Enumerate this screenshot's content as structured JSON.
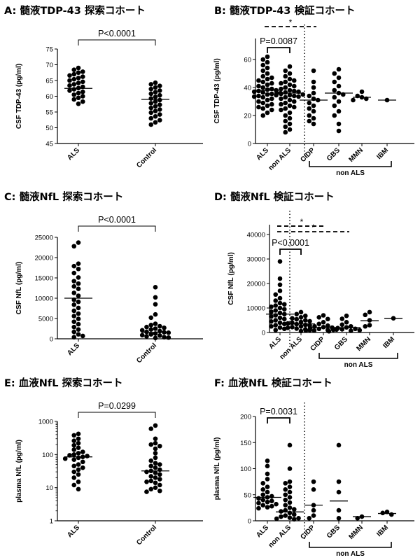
{
  "panels": {
    "A": {
      "title": "A: 髄液TDP-43 探索コホート"
    },
    "B": {
      "title": "B: 髄液TDP-43 検証コホート"
    },
    "C": {
      "title": "C: 髄液NfL 探索コホート"
    },
    "D": {
      "title": "D: 髄液NfL 検証コホート"
    },
    "E": {
      "title": "E: 血液NfL 探索コホート"
    },
    "F": {
      "title": "F: 血液NfL 検証コホート"
    }
  },
  "chart_data": [
    {
      "id": "A",
      "type": "scatter",
      "ylabel": "CSF TDP-43  (pg/ml)",
      "ylim": [
        45,
        75
      ],
      "yticks": [
        45,
        50,
        55,
        60,
        65,
        70,
        75
      ],
      "scale": "linear",
      "categories": [
        "ALS",
        "Control"
      ],
      "medians": [
        62.5,
        59
      ],
      "series": [
        {
          "values": [
            69,
            68.4,
            67.8,
            67.5,
            67,
            66.6,
            66.2,
            65.8,
            65.4,
            65,
            64.6,
            64.2,
            63.8,
            63.4,
            63,
            62.6,
            62.2,
            61.8,
            61.4,
            61,
            60.5,
            60,
            59.5,
            59,
            58.3,
            57.6
          ]
        },
        {
          "values": [
            64.3,
            63.8,
            63.3,
            62.8,
            62.3,
            61.8,
            61.3,
            60.8,
            60.3,
            59.8,
            59.3,
            58.8,
            58.3,
            57.8,
            57.3,
            56.8,
            56.3,
            55.8,
            55.3,
            54.8,
            54.2,
            53.6,
            53,
            52.4,
            51.7,
            51
          ]
        }
      ],
      "comparisons": [
        {
          "from": 0,
          "to": 1,
          "label": "P<0.0001"
        }
      ]
    },
    {
      "id": "B",
      "type": "scatter",
      "ylabel": "CSF TDP-43  (pg/ml)",
      "ylim": [
        0,
        75
      ],
      "yticks": [
        0,
        20,
        40,
        60
      ],
      "scale": "linear",
      "categories": [
        "ALS",
        "non ALS",
        "CIDP",
        "GBS",
        "MMN",
        "IBM"
      ],
      "medians": [
        38,
        36,
        31,
        36,
        33,
        31
      ],
      "series": [
        {
          "values": [
            62,
            60,
            58,
            56,
            54,
            52,
            50,
            48,
            47,
            46,
            45,
            44,
            43,
            42,
            41,
            40,
            39,
            38.5,
            38,
            37.5,
            37,
            36.5,
            36,
            35.5,
            35,
            34.5,
            34,
            33.5,
            33,
            32,
            31,
            30,
            29,
            28,
            27,
            26,
            25,
            24,
            22,
            20
          ]
        },
        {
          "values": [
            55,
            52,
            50,
            48,
            46,
            45,
            44,
            43,
            42,
            41,
            40,
            39,
            38,
            37.5,
            37,
            36.5,
            36,
            35.5,
            35,
            34.5,
            34,
            33.5,
            33,
            32,
            31,
            30,
            29,
            28,
            27,
            26,
            25,
            24,
            22,
            20,
            18,
            16,
            14,
            12,
            10,
            8
          ]
        },
        {
          "values": [
            52,
            44,
            40,
            36,
            34,
            32,
            31,
            29,
            27,
            25,
            23,
            20,
            18,
            16,
            14
          ]
        },
        {
          "values": [
            53,
            50,
            47,
            44,
            41,
            38,
            36,
            35,
            33,
            30,
            27,
            23,
            20,
            14,
            9
          ]
        },
        {
          "values": [
            37,
            34,
            33,
            32,
            31
          ]
        },
        {
          "values": [
            31
          ]
        }
      ],
      "comparisons": [
        {
          "from": 0,
          "to": 1,
          "label": "P=0.0087",
          "style": "solid"
        },
        {
          "from": 0,
          "to": 2,
          "label": "*",
          "style": "dashed"
        }
      ],
      "group_label": {
        "text": "non ALS",
        "from": 2,
        "to": 5
      }
    },
    {
      "id": "C",
      "type": "scatter",
      "ylabel": "CSF NfL  (pg/ml)",
      "ylim": [
        0,
        25000
      ],
      "yticks": [
        0,
        5000,
        10000,
        15000,
        20000,
        25000
      ],
      "scale": "linear",
      "categories": [
        "ALS",
        "Control"
      ],
      "medians": [
        10000,
        1600
      ],
      "series": [
        {
          "values": [
            23700,
            22800,
            18500,
            17900,
            17200,
            16200,
            15100,
            14200,
            13600,
            12900,
            12300,
            11300,
            10600,
            9600,
            9100,
            8400,
            7600,
            6900,
            6200,
            5600,
            4900,
            4200,
            3600,
            2900,
            2300,
            1700,
            1100,
            700,
            400
          ]
        },
        {
          "values": [
            12700,
            10200,
            8500,
            6000,
            5200,
            3700,
            3400,
            3100,
            2900,
            2700,
            2500,
            2300,
            2100,
            1900,
            1700,
            1600,
            1500,
            1300,
            1100,
            900,
            800,
            600,
            400,
            300,
            200
          ]
        }
      ],
      "comparisons": [
        {
          "from": 0,
          "to": 1,
          "label": "P<0.0001"
        }
      ]
    },
    {
      "id": "D",
      "type": "scatter",
      "ylabel": "CSF NfL  (pg/ml)",
      "ylim": [
        0,
        44000
      ],
      "yticks": [
        0,
        10000,
        20000,
        30000,
        40000
      ],
      "scale": "linear",
      "categories": [
        "ALS",
        "non ALS",
        "CIDP",
        "GBS",
        "MMN",
        "IBM"
      ],
      "medians": [
        7500,
        3500,
        2000,
        2000,
        4800,
        5800
      ],
      "series": [
        {
          "values": [
            29000,
            22000,
            19500,
            17000,
            15500,
            14000,
            13000,
            12000,
            11500,
            11000,
            10500,
            10000,
            9500,
            9000,
            8500,
            8000,
            7500,
            7000,
            6500,
            6000,
            5500,
            5000,
            4500,
            4000,
            3500,
            3000,
            2500,
            2000,
            1500,
            1000
          ]
        },
        {
          "values": [
            8300,
            7500,
            6800,
            6200,
            5800,
            5400,
            5000,
            4600,
            4300,
            4000,
            3700,
            3400,
            3100,
            2800,
            2500,
            2200,
            1900,
            1600,
            1300,
            1000,
            800,
            600
          ]
        },
        {
          "values": [
            7000,
            6200,
            5500,
            4200,
            3500,
            2800,
            2500,
            2200,
            2000,
            1800,
            1500,
            1200,
            1000,
            800
          ]
        },
        {
          "values": [
            6800,
            5600,
            4200,
            3200,
            2500,
            2100,
            1800,
            1500,
            1300,
            1100,
            900,
            700,
            500
          ]
        },
        {
          "values": [
            8300,
            7200,
            5000,
            3000,
            2500
          ]
        },
        {
          "values": [
            5800
          ]
        }
      ],
      "comparisons": [
        {
          "from": 0,
          "to": 1,
          "label": "P<0.0001",
          "style": "solid"
        },
        {
          "from": 0,
          "to": 2,
          "label": "",
          "style": "dashed"
        },
        {
          "from": 0,
          "to": 3,
          "label": "*",
          "style": "dashed"
        },
        {
          "from": 0,
          "to": 2,
          "label": "*",
          "style": "dashed"
        }
      ],
      "group_label": {
        "text": "non ALS",
        "from": 2,
        "to": 5
      }
    },
    {
      "id": "E",
      "type": "scatter",
      "ylabel": "plasma NfL  (pg/ml)",
      "ylim": [
        1,
        1000
      ],
      "yticks": [
        1,
        10,
        100,
        1000
      ],
      "scale": "log",
      "categories": [
        "ALS",
        "Control"
      ],
      "medians": [
        85,
        32
      ],
      "series": [
        {
          "values": [
            420,
            380,
            300,
            260,
            220,
            190,
            160,
            140,
            120,
            110,
            100,
            95,
            90,
            85,
            80,
            75,
            70,
            60,
            50,
            45,
            40,
            35,
            30,
            25,
            20,
            15,
            12,
            9
          ]
        },
        {
          "values": [
            750,
            600,
            300,
            220,
            200,
            180,
            150,
            110,
            80,
            65,
            55,
            50,
            45,
            40,
            35,
            32,
            30,
            28,
            25,
            22,
            20,
            18,
            16,
            15,
            14,
            12,
            10,
            9,
            8,
            7.5
          ]
        }
      ],
      "comparisons": [
        {
          "from": 0,
          "to": 1,
          "label": "P=0.0299"
        }
      ]
    },
    {
      "id": "F",
      "type": "scatter",
      "ylabel": "plasma NfL  (pg/ml)",
      "ylim": [
        0,
        200
      ],
      "yticks": [
        0,
        50,
        100,
        150,
        200
      ],
      "scale": "linear",
      "categories": [
        "ALS",
        "non ALS",
        "CIDP",
        "GBS",
        "MMN",
        "IBM"
      ],
      "medians": [
        45,
        17,
        30,
        38,
        8,
        14
      ],
      "series": [
        {
          "values": [
            115,
            105,
            90,
            80,
            72,
            65,
            60,
            55,
            50,
            47,
            45,
            43,
            40,
            38,
            36,
            34,
            32,
            30,
            28,
            26,
            24
          ]
        },
        {
          "values": [
            145,
            100,
            75,
            72,
            65,
            60,
            55,
            50,
            45,
            40,
            35,
            30,
            25,
            22,
            20,
            18,
            15,
            12,
            10,
            8,
            6,
            5,
            4,
            3
          ]
        },
        {
          "values": [
            75,
            60,
            30,
            20,
            10,
            5
          ]
        },
        {
          "values": [
            145,
            75,
            55,
            20,
            5
          ]
        },
        {
          "values": [
            8,
            5
          ]
        },
        {
          "values": [
            17,
            15,
            12
          ]
        }
      ],
      "comparisons": [
        {
          "from": 0,
          "to": 1,
          "label": "P=0.0031",
          "style": "solid"
        }
      ],
      "group_label": {
        "text": "non ALS",
        "from": 2,
        "to": 5
      }
    }
  ]
}
